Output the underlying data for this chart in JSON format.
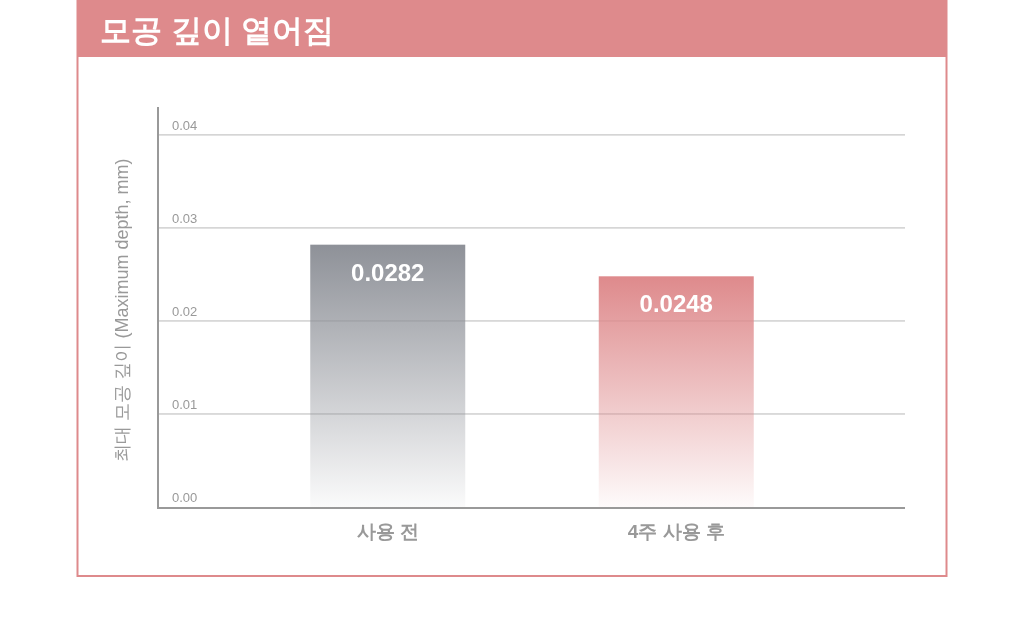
{
  "chart_data": {
    "type": "bar",
    "title": "모공 깊이 옅어짐",
    "ylabel": "최대 모공 깊이 (Maximum depth, mm)",
    "categories": [
      "사용 전",
      "4주 사용 후"
    ],
    "values": [
      0.0282,
      0.0248
    ],
    "colors": [
      "#8e9198",
      "#de8a8c"
    ],
    "data_labels": true,
    "ylim": [
      0,
      0.043
    ],
    "yticks": [
      {
        "value": 0,
        "label": "0.00"
      },
      {
        "value": 0.01,
        "label": "0.01"
      },
      {
        "value": 0.02,
        "label": "0.02"
      },
      {
        "value": 0.03,
        "label": "0.03"
      },
      {
        "value": 0.04,
        "label": "0.04"
      }
    ],
    "grid": "y"
  }
}
